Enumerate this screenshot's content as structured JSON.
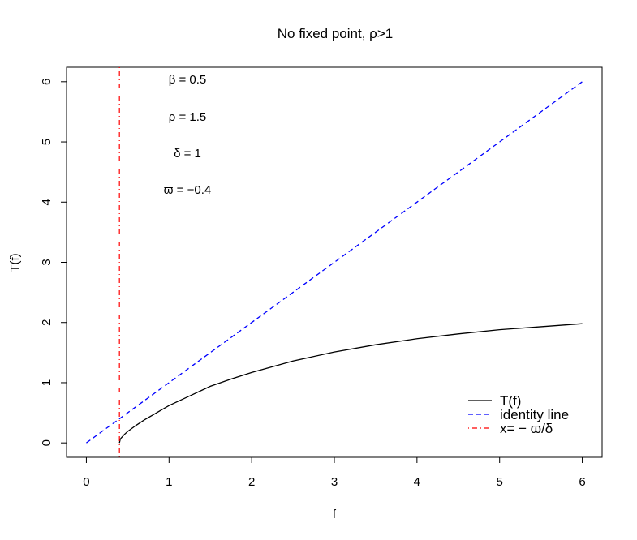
{
  "chart_data": {
    "type": "line",
    "title": "No fixed point, ρ>1",
    "xlabel": "f",
    "ylabel": "T(f)",
    "xlim": [
      -0.24,
      6.24
    ],
    "ylim": [
      -0.24,
      6.24
    ],
    "x_ticks": [
      0,
      1,
      2,
      3,
      4,
      5,
      6
    ],
    "y_ticks": [
      0,
      1,
      2,
      3,
      4,
      5,
      6
    ],
    "grid": false,
    "legend_position": "bottom-right",
    "parameter_annotations": [
      "β = 0.5",
      "ρ = 1.5",
      "δ = 1",
      "ϖ = −0.4"
    ],
    "series": [
      {
        "name": "T(f)",
        "color": "#000000",
        "style": "solid",
        "x": [
          0.4,
          0.41,
          0.42,
          0.44,
          0.46,
          0.5,
          0.55,
          0.6,
          0.7,
          0.8,
          0.9,
          1.0,
          1.25,
          1.5,
          1.75,
          2.0,
          2.5,
          3.0,
          3.5,
          4.0,
          4.5,
          5.0,
          5.5,
          6.0
        ],
        "y": [
          0.0,
          0.06,
          0.08,
          0.11,
          0.14,
          0.19,
          0.24,
          0.29,
          0.38,
          0.46,
          0.54,
          0.62,
          0.78,
          0.94,
          1.06,
          1.17,
          1.36,
          1.51,
          1.63,
          1.73,
          1.81,
          1.88,
          1.93,
          1.98
        ]
      },
      {
        "name": "identity line",
        "color": "#0000ff",
        "style": "dashed",
        "x": [
          0,
          6
        ],
        "y": [
          0,
          6
        ]
      },
      {
        "name": "x= − ϖ/δ",
        "color": "#ff0000",
        "style": "dotdash",
        "vertical_x": 0.4
      }
    ]
  }
}
